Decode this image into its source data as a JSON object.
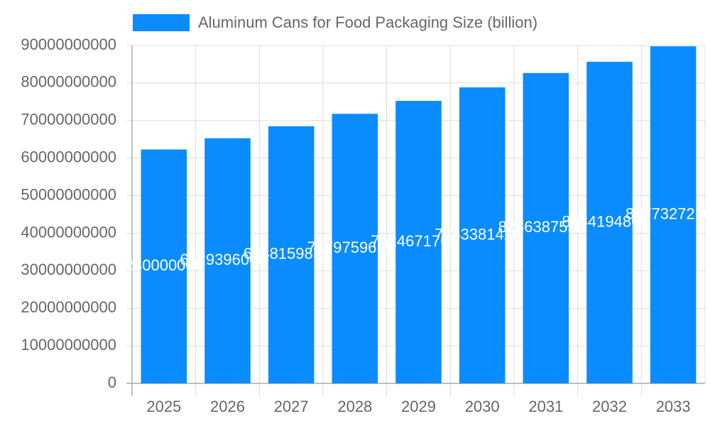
{
  "chart_data": {
    "type": "bar",
    "legend_label": "Aluminum Cans for Food Packaging Size (billion)",
    "color": "#0a8cff",
    "categories": [
      "2025",
      "2026",
      "2027",
      "2028",
      "2029",
      "2030",
      "2031",
      "2032",
      "2033"
    ],
    "values": [
      62300000000,
      65293960000,
      68481598720,
      71797596150,
      75246717630,
      78833814260,
      82663875500,
      85641948600,
      89773272100
    ],
    "ylim": [
      0,
      90000000000
    ],
    "yticks": [
      0,
      10000000000,
      20000000000,
      30000000000,
      40000000000,
      50000000000,
      60000000000,
      70000000000,
      80000000000,
      90000000000
    ],
    "grid": true
  }
}
